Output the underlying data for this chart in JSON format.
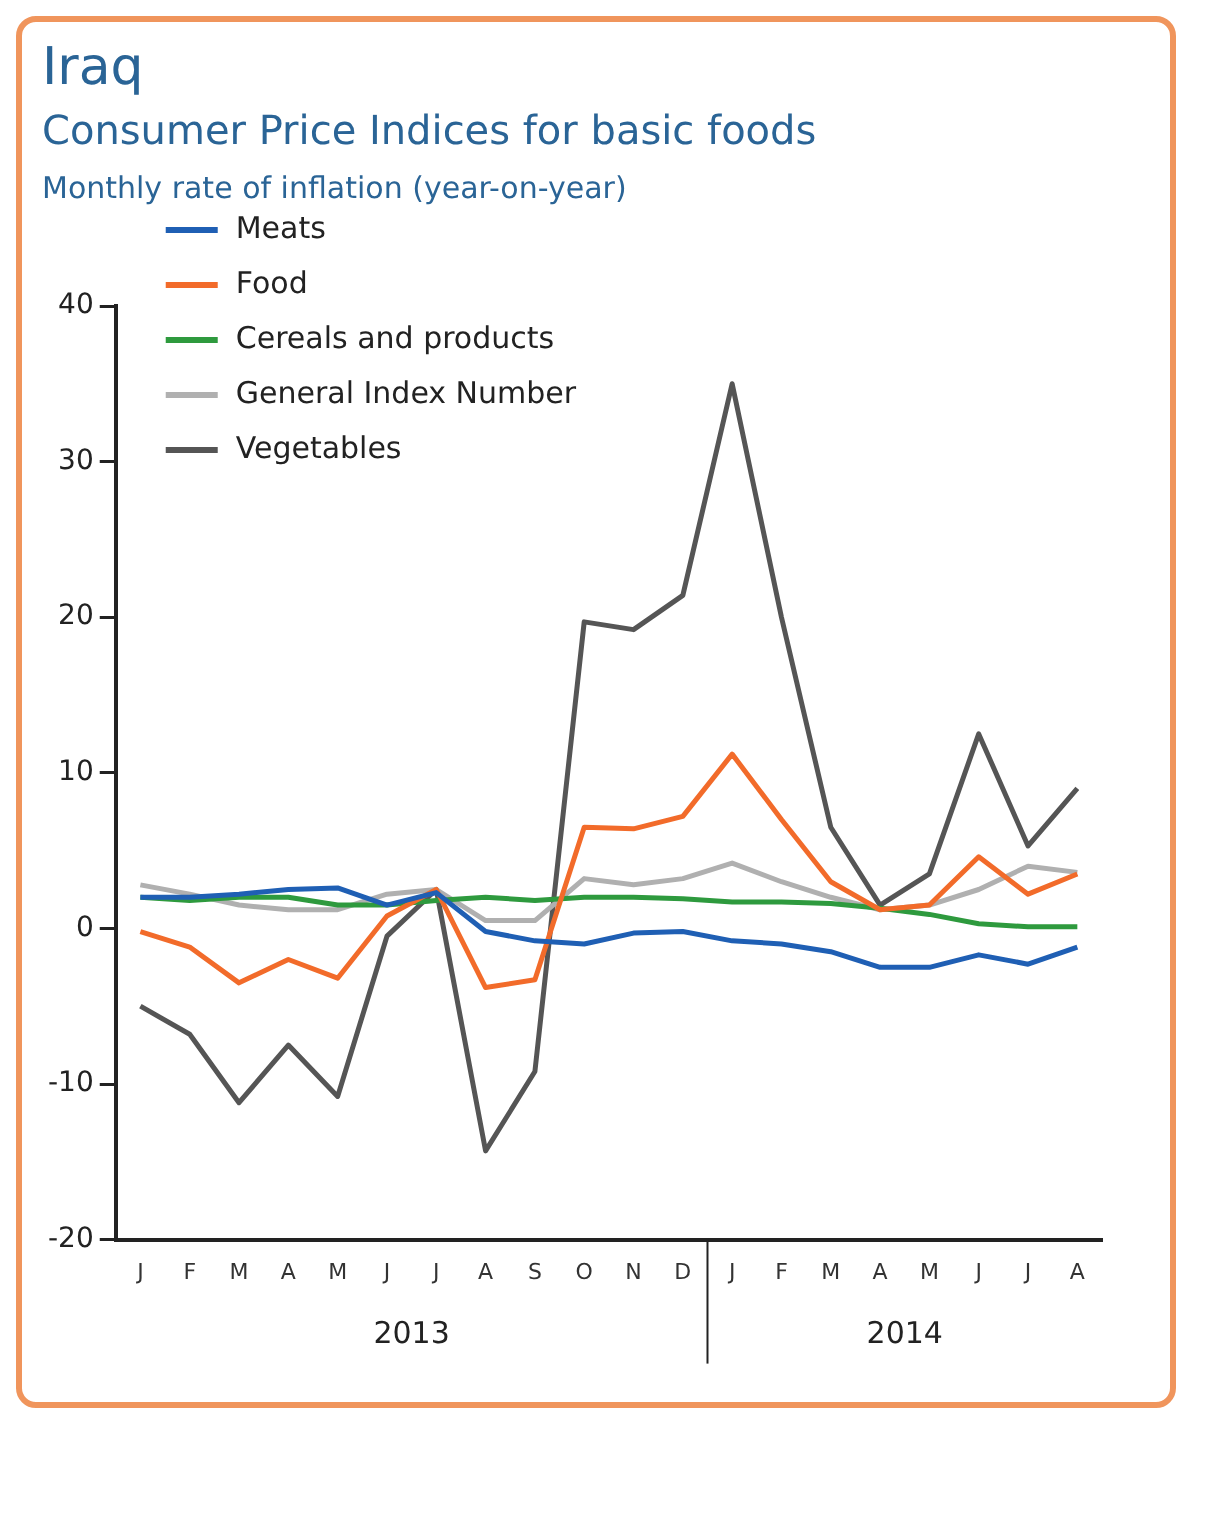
{
  "chart_data": {
    "type": "line",
    "title": "Iraq",
    "subtitle": "Consumer Price Indices for basic foods",
    "ylabel": "Monthly rate of inflation (year-on-year)",
    "categories": [
      "J",
      "F",
      "M",
      "A",
      "M",
      "J",
      "J",
      "A",
      "S",
      "O",
      "N",
      "D",
      "J",
      "F",
      "M",
      "A",
      "M",
      "J",
      "J",
      "A"
    ],
    "annotations": [
      "2013",
      "2014"
    ],
    "series": [
      {
        "name": "Meats",
        "color": "#1f5fb4",
        "values": [
          2,
          2,
          2.2,
          2.5,
          2.6,
          1.5,
          2.3,
          -0.2,
          -0.8,
          -1,
          -0.3,
          -0.2,
          -0.8,
          -1,
          -1.5,
          -2.5,
          -2.5,
          -1.7,
          -2.3,
          -1.2
        ]
      },
      {
        "name": "Food",
        "color": "#f26b2a",
        "values": [
          -0.2,
          -1.2,
          -3.5,
          -2,
          -3.2,
          0.8,
          2.5,
          -3.8,
          -3.3,
          6.5,
          6.4,
          7.2,
          11.2,
          7,
          3,
          1.2,
          1.5,
          4.6,
          2.2,
          3.5
        ]
      },
      {
        "name": "Cereals and products",
        "color": "#2e9a3e",
        "values": [
          2,
          1.8,
          2,
          2,
          1.5,
          1.5,
          1.8,
          2,
          1.8,
          2,
          2,
          1.9,
          1.7,
          1.7,
          1.6,
          1.3,
          0.9,
          0.3,
          0.1,
          0.1
        ]
      },
      {
        "name": "General Index Number",
        "color": "#b0b0b0",
        "values": [
          2.8,
          2.2,
          1.5,
          1.2,
          1.2,
          2.2,
          2.5,
          0.5,
          0.5,
          3.2,
          2.8,
          3.2,
          4.2,
          3,
          2,
          1.2,
          1.5,
          2.5,
          4,
          3.6
        ]
      },
      {
        "name": "Vegetables",
        "color": "#555555",
        "values": [
          -5,
          -6.8,
          -11.2,
          -7.5,
          -10.8,
          -0.5,
          2.5,
          -14.3,
          -9.2,
          19.7,
          19.2,
          21.4,
          35,
          20,
          6.5,
          1.5,
          3.5,
          12.5,
          5.3,
          9
        ]
      }
    ],
    "ylim": [
      -20,
      40
    ],
    "yticks": [
      -20,
      -10,
      0,
      10,
      20,
      30,
      40
    ],
    "grid": false,
    "legend": "top left",
    "marker": "none",
    "line_style": "solid"
  }
}
